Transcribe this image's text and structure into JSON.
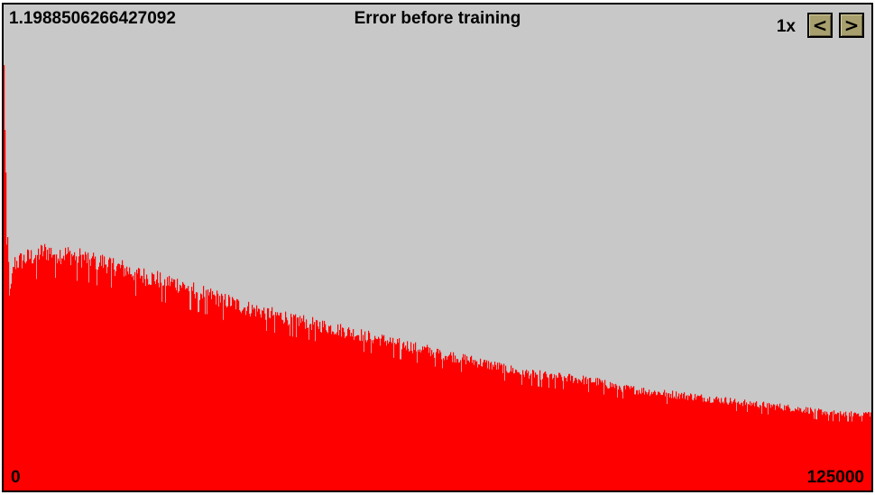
{
  "controls": {
    "zoom_label": "1x",
    "prev_label": "<",
    "next_label": ">"
  },
  "colors": {
    "background": "#c8c8c8",
    "series": "#ff0000",
    "button": "#a89f6e"
  },
  "chart_data": {
    "type": "bar",
    "title": "Error before training",
    "ymax_label": "1.1988506266427092",
    "x_start_label": "0",
    "x_end_label": "125000",
    "xlim": [
      0,
      125000
    ],
    "ylim": [
      0,
      1.1988506266427092
    ],
    "profile_x": [
      0,
      400,
      900,
      1500,
      3000,
      6000,
      10000,
      15000,
      20000,
      25000,
      30000,
      35000,
      40000,
      45000,
      50000,
      55000,
      60000,
      65000,
      70000,
      75000,
      80000,
      85000,
      90000,
      95000,
      100000,
      105000,
      110000,
      115000,
      120000,
      125000
    ],
    "profile_y": [
      1.1,
      0.7,
      0.47,
      0.56,
      0.57,
      0.59,
      0.58,
      0.56,
      0.53,
      0.51,
      0.48,
      0.45,
      0.43,
      0.41,
      0.39,
      0.37,
      0.35,
      0.33,
      0.31,
      0.29,
      0.28,
      0.27,
      0.25,
      0.24,
      0.23,
      0.22,
      0.21,
      0.2,
      0.19,
      0.19
    ]
  }
}
